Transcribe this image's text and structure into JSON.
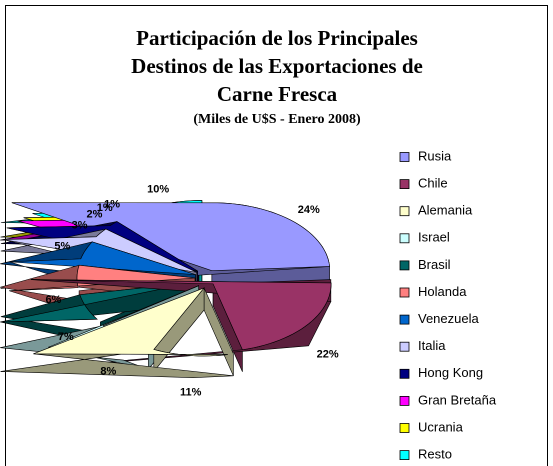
{
  "chart_data": {
    "type": "pie3d",
    "title": [
      "Participación de los Principales",
      "Destinos de las Exportaciones de",
      "Carne Fresca"
    ],
    "subtitle": "(Miles de U$S - Enero 2008)",
    "categories": [
      "Rusia",
      "Chile",
      "Alemania",
      "Israel",
      "Brasil",
      "Holanda",
      "Venezuela",
      "Italia",
      "Hong Kong",
      "Gran Bretaña",
      "Ucrania",
      "Resto"
    ],
    "values": [
      24,
      22,
      11,
      8,
      7,
      6,
      5,
      3,
      2,
      1,
      1,
      10
    ],
    "value_labels": [
      "24%",
      "22%",
      "11%",
      "8%",
      "7%",
      "6%",
      "5%",
      "3%",
      "2%",
      "1%",
      "1%",
      "10%"
    ],
    "colors": [
      "#9999ff",
      "#993366",
      "#ffffcc",
      "#ccffff",
      "#006666",
      "#ff8080",
      "#0066cc",
      "#ccccff",
      "#000080",
      "#ff00ff",
      "#ffff00",
      "#00ffff"
    ],
    "legend": "right"
  }
}
